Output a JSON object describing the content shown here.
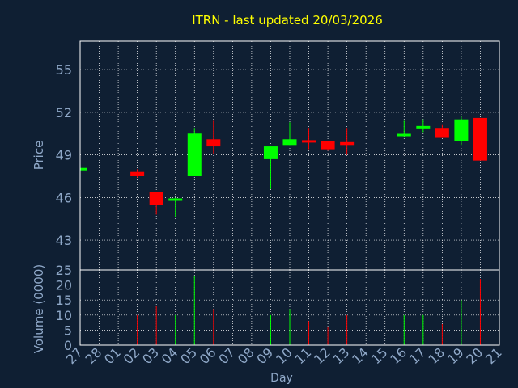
{
  "chart_data": {
    "type": "candlestick",
    "title": "ITRN - last updated 20/03/2026",
    "xlabel": "Day",
    "ylabel_price": "Price",
    "ylabel_volume": "Volume (0000)",
    "price_ylim": [
      40.9,
      57.0
    ],
    "price_ticks": [
      43,
      46,
      49,
      52,
      55
    ],
    "volume_ylim": [
      0,
      25
    ],
    "volume_ticks": [
      0,
      5,
      10,
      15,
      20,
      25
    ],
    "grid": true,
    "colors": {
      "background": "#0f1f33",
      "up": "#00ff00",
      "down": "#ff0000",
      "title": "#ffff00",
      "axis_text": "#8fa8c8",
      "frame": "#ffffff"
    },
    "days": [
      "27",
      "28",
      "01",
      "02",
      "03",
      "04",
      "05",
      "06",
      "07",
      "08",
      "09",
      "10",
      "11",
      "12",
      "13",
      "14",
      "15",
      "16",
      "17",
      "18",
      "19",
      "20",
      "21"
    ],
    "candles": [
      {
        "day": "27",
        "open": 48.0,
        "high": 48.0,
        "low": 48.0,
        "close": 48.0,
        "volume": 0
      },
      {
        "day": "02",
        "open": 47.8,
        "high": 48.0,
        "low": 47.4,
        "close": 47.5,
        "volume": 10
      },
      {
        "day": "03",
        "open": 46.4,
        "high": 46.4,
        "low": 44.8,
        "close": 45.5,
        "volume": 13
      },
      {
        "day": "04",
        "open": 45.8,
        "high": 46.0,
        "low": 44.6,
        "close": 45.9,
        "volume": 10
      },
      {
        "day": "05",
        "open": 47.5,
        "high": 50.9,
        "low": 47.5,
        "close": 50.5,
        "volume": 23
      },
      {
        "day": "06",
        "open": 50.1,
        "high": 51.4,
        "low": 49.1,
        "close": 49.6,
        "volume": 12
      },
      {
        "day": "09",
        "open": 48.7,
        "high": 49.6,
        "low": 46.6,
        "close": 49.6,
        "volume": 10
      },
      {
        "day": "10",
        "open": 49.7,
        "high": 51.3,
        "low": 49.7,
        "close": 50.1,
        "volume": 12
      },
      {
        "day": "11",
        "open": 50.0,
        "high": 50.9,
        "low": 49.4,
        "close": 49.9,
        "volume": 8
      },
      {
        "day": "12",
        "open": 50.0,
        "high": 50.0,
        "low": 49.3,
        "close": 49.4,
        "volume": 6
      },
      {
        "day": "13",
        "open": 49.9,
        "high": 50.9,
        "low": 49.0,
        "close": 49.7,
        "volume": 10
      },
      {
        "day": "16",
        "open": 50.4,
        "high": 51.4,
        "low": 50.3,
        "close": 50.4,
        "volume": 10
      },
      {
        "day": "17",
        "open": 50.9,
        "high": 51.5,
        "low": 50.6,
        "close": 51.0,
        "volume": 10
      },
      {
        "day": "18",
        "open": 50.9,
        "high": 51.1,
        "low": 50.2,
        "close": 50.2,
        "volume": 7
      },
      {
        "day": "19",
        "open": 50.0,
        "high": 51.7,
        "low": 49.7,
        "close": 51.5,
        "volume": 15
      },
      {
        "day": "20",
        "open": 51.6,
        "high": 51.6,
        "low": 48.6,
        "close": 48.6,
        "volume": 22
      }
    ]
  }
}
